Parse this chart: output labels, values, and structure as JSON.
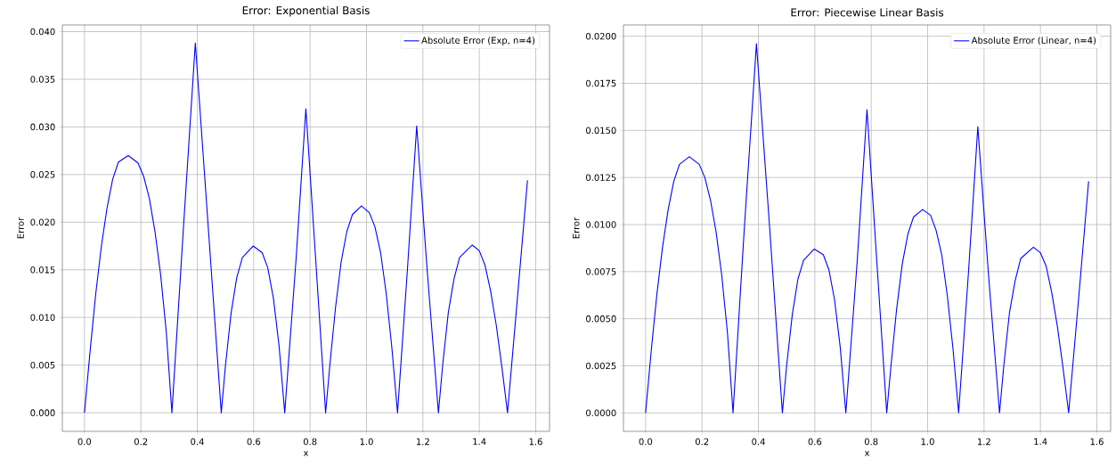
{
  "chart_data": [
    {
      "type": "line",
      "title": "Error: Exponential Basis",
      "xlabel": "x",
      "ylabel": "Error",
      "xlim": [
        -0.0785,
        1.649
      ],
      "ylim": [
        -0.00195,
        0.0407
      ],
      "xticks": [
        {
          "value": 0,
          "label": "0.0"
        },
        {
          "value": 0.2,
          "label": "0.2"
        },
        {
          "value": 0.4,
          "label": "0.4"
        },
        {
          "value": 0.6,
          "label": "0.6"
        },
        {
          "value": 0.8,
          "label": "0.8"
        },
        {
          "value": 1.0,
          "label": "1.0"
        },
        {
          "value": 1.2,
          "label": "1.2"
        },
        {
          "value": 1.4,
          "label": "1.4"
        },
        {
          "value": 1.6,
          "label": "1.6"
        }
      ],
      "yticks": [
        {
          "value": 0,
          "label": "0.000"
        },
        {
          "value": 0.005,
          "label": "0.005"
        },
        {
          "value": 0.01,
          "label": "0.010"
        },
        {
          "value": 0.015,
          "label": "0.015"
        },
        {
          "value": 0.02,
          "label": "0.020"
        },
        {
          "value": 0.025,
          "label": "0.025"
        },
        {
          "value": 0.03,
          "label": "0.030"
        },
        {
          "value": 0.035,
          "label": "0.035"
        },
        {
          "value": 0.04,
          "label": "0.040"
        }
      ],
      "grid": true,
      "legend": "top right",
      "series": [
        {
          "name": "Absolute Error (Exp, n=4)",
          "color": "#0000ff",
          "x": [
            0,
            0.02,
            0.04,
            0.06,
            0.08,
            0.1,
            0.12,
            0.155,
            0.19,
            0.21,
            0.23,
            0.25,
            0.27,
            0.29,
            0.31,
            0.35,
            0.393,
            0.44,
            0.485,
            0.5,
            0.52,
            0.54,
            0.56,
            0.598,
            0.63,
            0.65,
            0.67,
            0.69,
            0.71,
            0.75,
            0.785,
            0.82,
            0.855,
            0.87,
            0.89,
            0.91,
            0.93,
            0.95,
            0.982,
            1.01,
            1.03,
            1.05,
            1.07,
            1.09,
            1.11,
            1.145,
            1.178,
            1.215,
            1.255,
            1.27,
            1.29,
            1.31,
            1.33,
            1.375,
            1.4,
            1.42,
            1.44,
            1.46,
            1.48,
            1.5,
            1.535,
            1.5708
          ],
          "values": [
            0,
            0.0065,
            0.0125,
            0.0175,
            0.0215,
            0.0245,
            0.0263,
            0.027,
            0.0262,
            0.0248,
            0.0225,
            0.019,
            0.0145,
            0.0085,
            0,
            0.019,
            0.0388,
            0.019,
            0,
            0.005,
            0.0105,
            0.0142,
            0.0163,
            0.0175,
            0.0168,
            0.0152,
            0.012,
            0.007,
            0,
            0.016,
            0.0319,
            0.016,
            0,
            0.005,
            0.011,
            0.0158,
            0.019,
            0.0208,
            0.0217,
            0.021,
            0.0195,
            0.0168,
            0.0125,
            0.0068,
            0,
            0.015,
            0.0301,
            0.015,
            0,
            0.005,
            0.0105,
            0.014,
            0.0163,
            0.0176,
            0.017,
            0.0155,
            0.0128,
            0.0092,
            0.0048,
            0,
            0.012,
            0.0244
          ]
        }
      ]
    },
    {
      "type": "line",
      "title": "Error: Piecewise Linear Basis",
      "xlabel": "x",
      "ylabel": "Error",
      "xlim": [
        -0.0785,
        1.649
      ],
      "ylim": [
        -0.00098,
        0.0206
      ],
      "xticks": [
        {
          "value": 0,
          "label": "0.0"
        },
        {
          "value": 0.2,
          "label": "0.2"
        },
        {
          "value": 0.4,
          "label": "0.4"
        },
        {
          "value": 0.6,
          "label": "0.6"
        },
        {
          "value": 0.8,
          "label": "0.8"
        },
        {
          "value": 1.0,
          "label": "1.0"
        },
        {
          "value": 1.2,
          "label": "1.2"
        },
        {
          "value": 1.4,
          "label": "1.4"
        },
        {
          "value": 1.6,
          "label": "1.6"
        }
      ],
      "yticks": [
        {
          "value": 0,
          "label": "0.0000"
        },
        {
          "value": 0.0025,
          "label": "0.0025"
        },
        {
          "value": 0.005,
          "label": "0.0050"
        },
        {
          "value": 0.0075,
          "label": "0.0075"
        },
        {
          "value": 0.01,
          "label": "0.0100"
        },
        {
          "value": 0.0125,
          "label": "0.0125"
        },
        {
          "value": 0.015,
          "label": "0.0150"
        },
        {
          "value": 0.0175,
          "label": "0.0175"
        },
        {
          "value": 0.02,
          "label": "0.0200"
        }
      ],
      "grid": true,
      "legend": "top right",
      "series": [
        {
          "name": "Absolute Error (Linear, n=4)",
          "color": "#0000ff",
          "x": [
            0,
            0.02,
            0.04,
            0.06,
            0.08,
            0.1,
            0.12,
            0.155,
            0.19,
            0.21,
            0.23,
            0.25,
            0.27,
            0.29,
            0.31,
            0.35,
            0.393,
            0.44,
            0.485,
            0.5,
            0.52,
            0.54,
            0.56,
            0.598,
            0.63,
            0.65,
            0.67,
            0.69,
            0.71,
            0.75,
            0.785,
            0.82,
            0.855,
            0.87,
            0.89,
            0.91,
            0.93,
            0.95,
            0.982,
            1.01,
            1.03,
            1.05,
            1.07,
            1.09,
            1.11,
            1.145,
            1.178,
            1.215,
            1.255,
            1.27,
            1.29,
            1.31,
            1.33,
            1.375,
            1.4,
            1.42,
            1.44,
            1.46,
            1.48,
            1.5,
            1.535,
            1.5708
          ],
          "values": [
            0,
            0.0033,
            0.0063,
            0.0088,
            0.0108,
            0.0123,
            0.0132,
            0.0136,
            0.0132,
            0.0125,
            0.0113,
            0.0096,
            0.0073,
            0.0043,
            0,
            0.0098,
            0.0196,
            0.0098,
            0,
            0.0025,
            0.0052,
            0.0071,
            0.0081,
            0.0087,
            0.0084,
            0.0076,
            0.006,
            0.0035,
            0,
            0.008,
            0.0161,
            0.008,
            0,
            0.0025,
            0.0055,
            0.0079,
            0.0095,
            0.0104,
            0.0108,
            0.0105,
            0.0097,
            0.0084,
            0.0062,
            0.0034,
            0,
            0.0075,
            0.0152,
            0.0075,
            0,
            0.0025,
            0.0053,
            0.007,
            0.0082,
            0.0088,
            0.0085,
            0.0078,
            0.0064,
            0.0046,
            0.0024,
            0,
            0.006,
            0.0123
          ]
        }
      ]
    }
  ]
}
